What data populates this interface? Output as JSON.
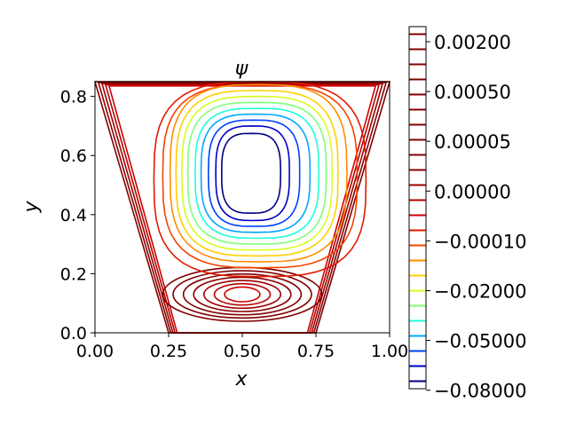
{
  "chart_data": {
    "type": "contour",
    "title": "ψ",
    "xlabel": "x",
    "ylabel": "y",
    "xlim": [
      0.0,
      1.0
    ],
    "ylim": [
      0.0,
      0.85
    ],
    "xticks": [
      "0.00",
      "0.25",
      "0.50",
      "0.75",
      "1.00"
    ],
    "yticks": [
      "0.0",
      "0.2",
      "0.4",
      "0.6",
      "0.8"
    ],
    "colormap": "jet",
    "domain_outline": {
      "top_y": 0.85,
      "bottom_x": [
        0.25,
        0.75
      ],
      "top_x": [
        0.0,
        1.0
      ]
    },
    "main_vortex_center": {
      "x": 0.53,
      "y": 0.55
    },
    "secondary_eddy_center": {
      "x": 0.5,
      "y": 0.13
    },
    "colorbar": {
      "tick_labels": [
        "0.00200",
        "0.00050",
        "0.00005",
        "0.00000",
        "−0.00010",
        "−0.02000",
        "−0.05000",
        "−0.08000"
      ],
      "levels_top_to_bottom": [
        "#800000",
        "#800000",
        "#800000",
        "#800000",
        "#800000",
        "#800000",
        "#800000",
        "#800000",
        "#800000",
        "#8a0000",
        "#9c0000",
        "#b50000",
        "#cc0000",
        "#e21a00",
        "#f54200",
        "#ff8c00",
        "#ffd000",
        "#d7ff1f",
        "#7dff7a",
        "#1fffd7",
        "#00a8ff",
        "#0040ff",
        "#0000c4",
        "#000080"
      ]
    },
    "contours": [
      {
        "color": "#000080",
        "cx": 0.53,
        "cy": 0.54,
        "rx": 0.1,
        "ry": 0.135
      },
      {
        "color": "#0000c4",
        "cx": 0.535,
        "cy": 0.54,
        "rx": 0.125,
        "ry": 0.16
      },
      {
        "color": "#0040ff",
        "cx": 0.54,
        "cy": 0.54,
        "rx": 0.155,
        "ry": 0.18
      },
      {
        "color": "#00a8ff",
        "cx": 0.545,
        "cy": 0.54,
        "rx": 0.185,
        "ry": 0.2
      },
      {
        "color": "#1fffd7",
        "cx": 0.55,
        "cy": 0.54,
        "rx": 0.21,
        "ry": 0.22
      },
      {
        "color": "#7dff7a",
        "cx": 0.55,
        "cy": 0.54,
        "rx": 0.235,
        "ry": 0.24
      },
      {
        "color": "#d7ff1f",
        "cx": 0.55,
        "cy": 0.54,
        "rx": 0.255,
        "ry": 0.26
      },
      {
        "color": "#ffd000",
        "cx": 0.55,
        "cy": 0.54,
        "rx": 0.275,
        "ry": 0.28
      },
      {
        "color": "#ff8c00",
        "cx": 0.555,
        "cy": 0.54,
        "rx": 0.3,
        "ry": 0.3
      },
      {
        "color": "#f54200",
        "cx": 0.56,
        "cy": 0.53,
        "rx": 0.33,
        "ry": 0.31
      },
      {
        "color": "#e21a00",
        "cx": 0.56,
        "cy": 0.52,
        "rx": 0.36,
        "ry": 0.33
      }
    ]
  }
}
